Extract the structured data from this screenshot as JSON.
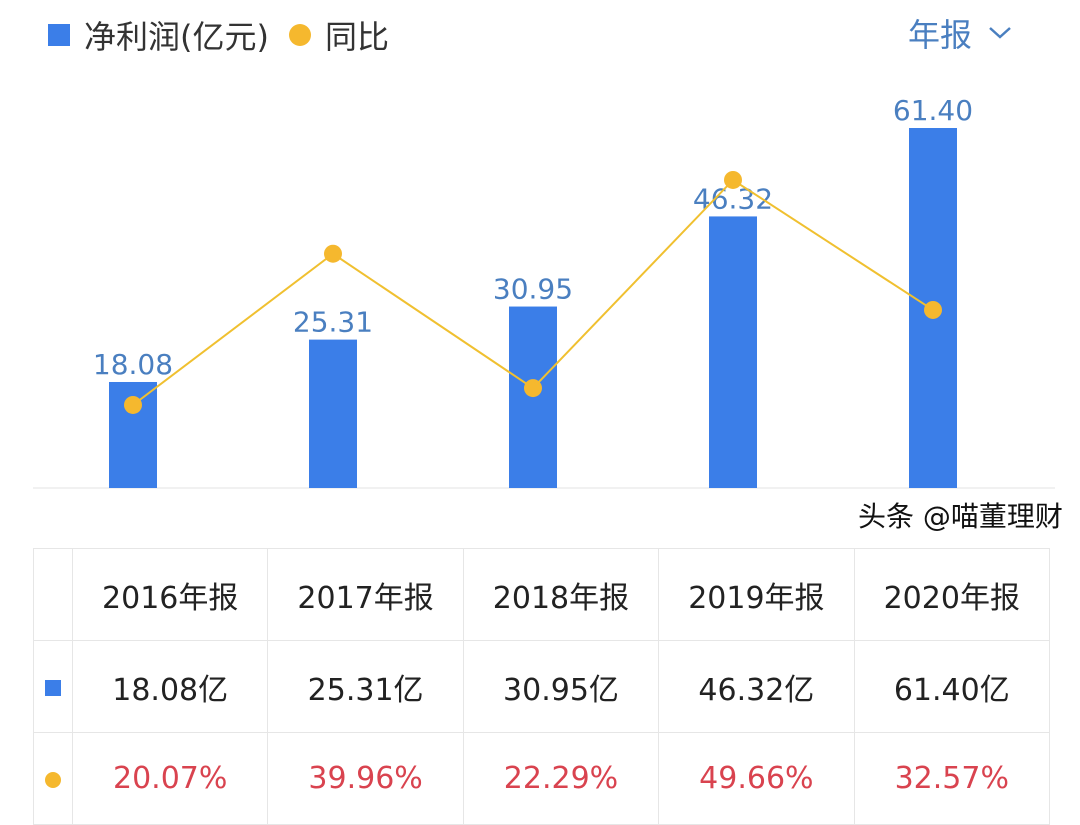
{
  "legend": {
    "bar_label": "净利润(亿元)",
    "line_label": "同比"
  },
  "period_selector": {
    "label": "年报",
    "icon": "chevron-down-icon"
  },
  "colors": {
    "bar": "#3b7ee8",
    "line": "#f5b82e",
    "bar_label": "#4a7fc0",
    "pct": "#d9434f"
  },
  "chart_data": {
    "type": "bar+line",
    "categories": [
      "2016年报",
      "2017年报",
      "2018年报",
      "2019年报",
      "2020年报"
    ],
    "series": [
      {
        "name": "净利润(亿元)",
        "type": "bar",
        "values": [
          18.08,
          25.31,
          30.95,
          46.32,
          61.4
        ],
        "labels": [
          "18.08",
          "25.31",
          "30.95",
          "46.32",
          "61.40"
        ]
      },
      {
        "name": "同比",
        "type": "line",
        "values": [
          20.07,
          39.96,
          22.29,
          49.66,
          32.57
        ]
      }
    ]
  },
  "table": {
    "headers": [
      "2016年报",
      "2017年报",
      "2018年报",
      "2019年报",
      "2020年报"
    ],
    "profit": [
      "18.08亿",
      "25.31亿",
      "30.95亿",
      "46.32亿",
      "61.40亿"
    ],
    "yoy": [
      "20.07%",
      "39.96%",
      "22.29%",
      "49.66%",
      "32.57%"
    ]
  },
  "watermark": "头条 @喵董理财"
}
